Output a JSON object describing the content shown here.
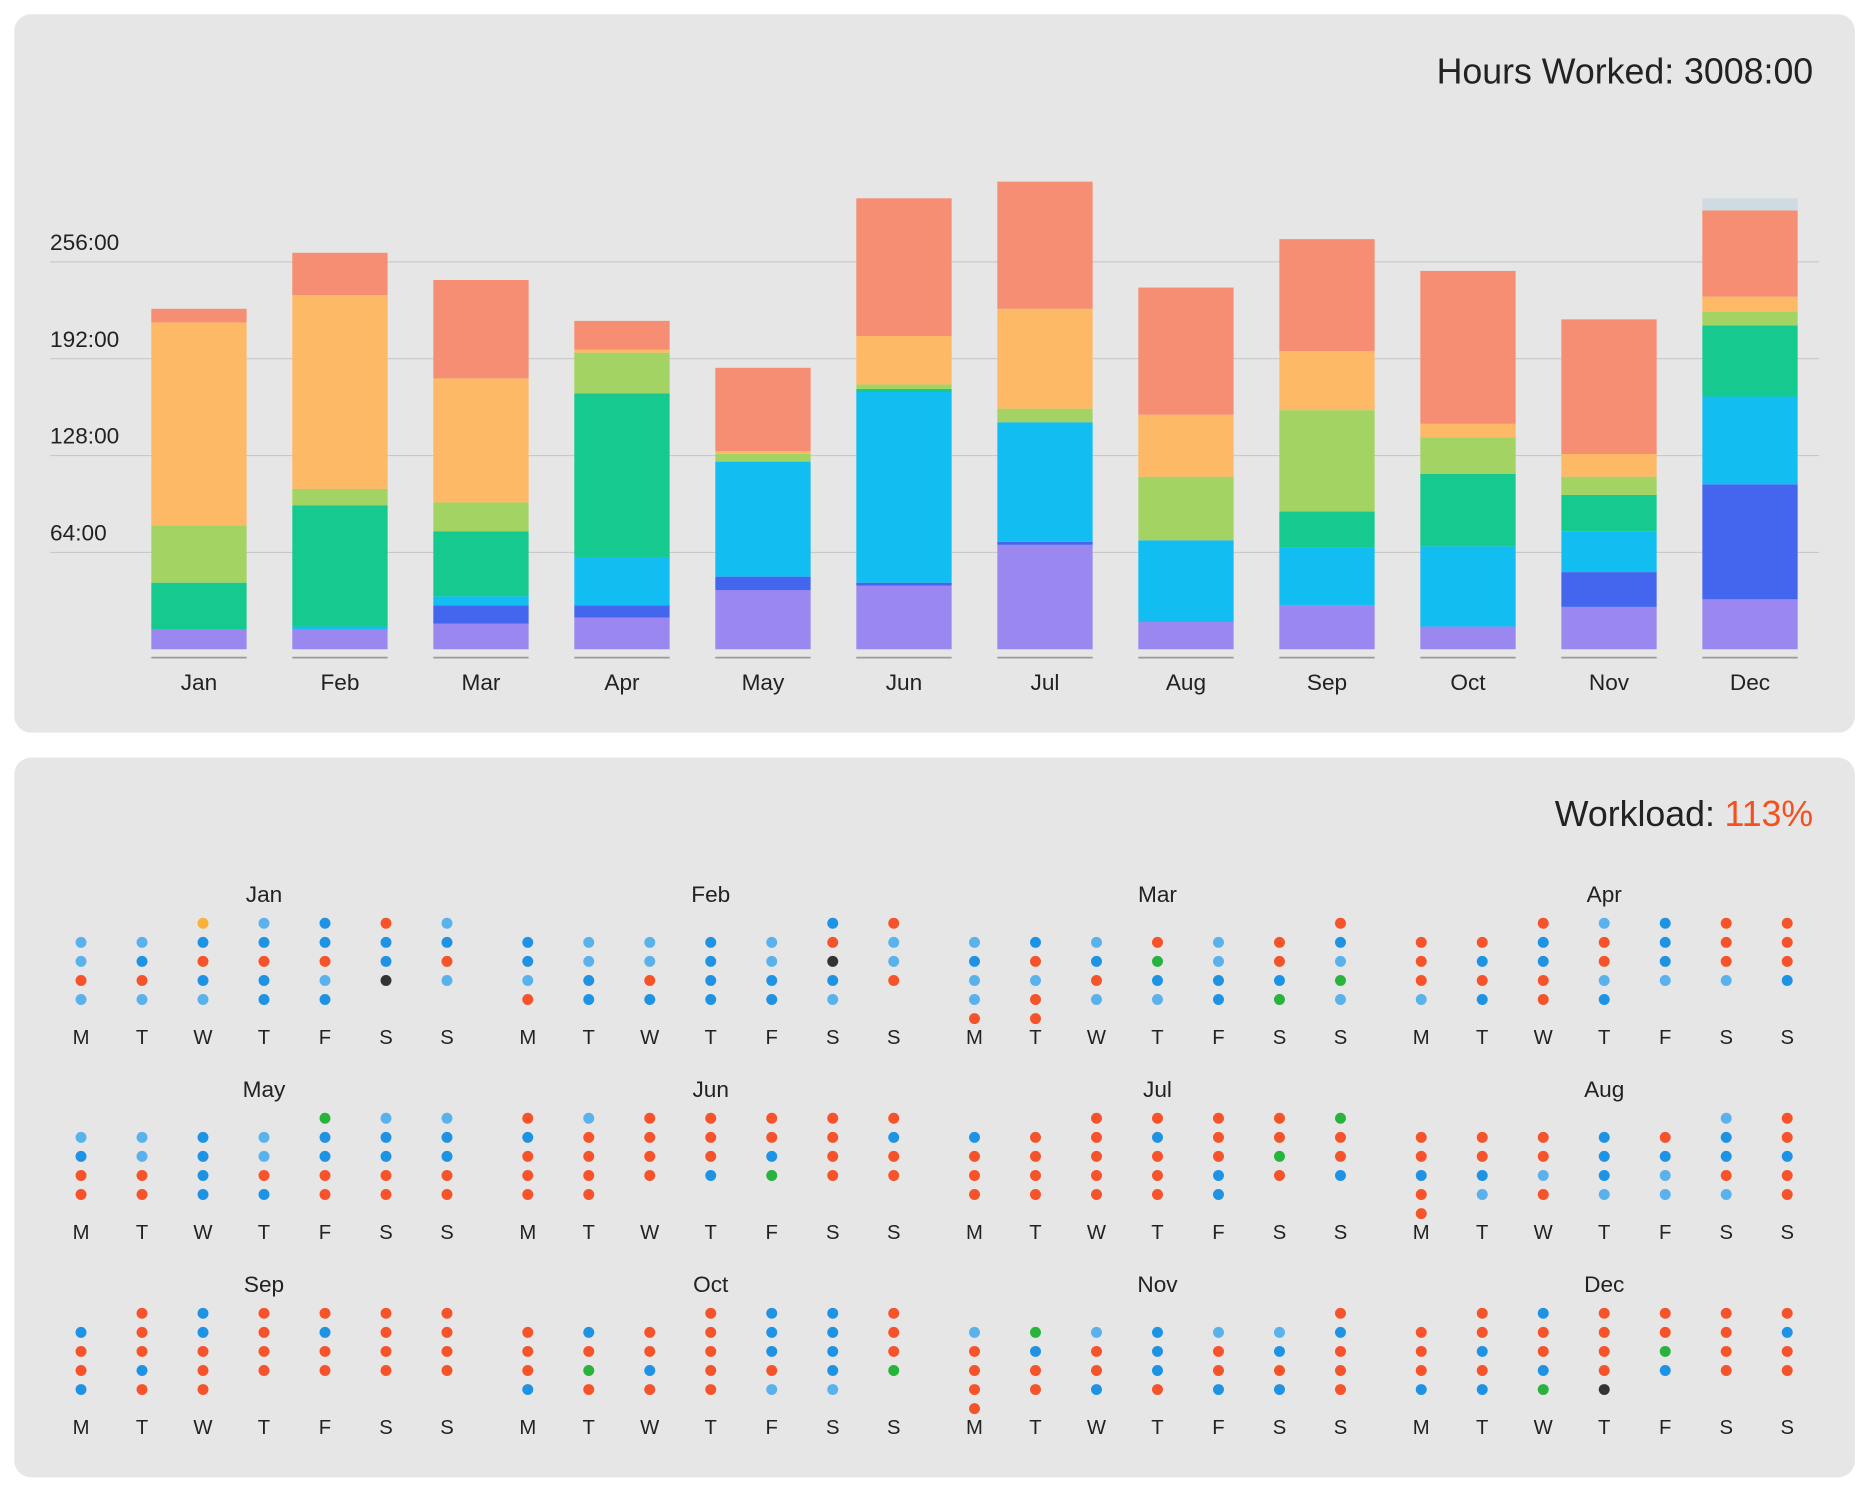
{
  "chart_data": {
    "type": "stacked-bar",
    "title": "Hours Worked: 3008:00",
    "categories": [
      "Jan",
      "Feb",
      "Mar",
      "Apr",
      "May",
      "Jun",
      "Jul",
      "Aug",
      "Sep",
      "Oct",
      "Nov",
      "Dec"
    ],
    "category_colors": [
      "#222222",
      "#222222",
      "#222222",
      "#222222",
      "#222222",
      "#222222",
      "#222222",
      "#222222",
      "#222222",
      "#222222",
      "#222222",
      "#fbb45f"
    ],
    "series": [
      {
        "color": "#9b87f0",
        "values": [
          13,
          13,
          17,
          21,
          39,
          42,
          69,
          18,
          29,
          15,
          28,
          33
        ]
      },
      {
        "color": "#4466ee",
        "values": [
          0,
          0,
          12,
          8,
          9,
          2,
          2,
          0,
          0,
          0,
          23,
          76
        ]
      },
      {
        "color": "#12bdf2",
        "values": [
          0,
          2,
          6,
          32,
          76,
          126,
          79,
          54,
          38,
          53,
          27,
          58
        ]
      },
      {
        "color": "#16c98f",
        "values": [
          31,
          80,
          43,
          108,
          0,
          2,
          0,
          0,
          24,
          48,
          24,
          47
        ]
      },
      {
        "color": "#a3d463",
        "values": [
          38,
          11,
          19,
          27,
          5,
          3,
          9,
          42,
          67,
          24,
          12,
          9
        ]
      },
      {
        "color": "#fdb965",
        "values": [
          134,
          128,
          82,
          2,
          2,
          32,
          66,
          41,
          39,
          9,
          15,
          10
        ]
      },
      {
        "color": "#f58e72",
        "values": [
          9,
          28,
          65,
          19,
          55,
          91,
          84,
          84,
          74,
          101,
          89,
          57
        ]
      },
      {
        "color": "#cfdbe3",
        "values": [
          0,
          0,
          0,
          0,
          0,
          0,
          0,
          0,
          0,
          0,
          0,
          8
        ]
      }
    ],
    "ylim": [
      0,
      320
    ],
    "yticks": [
      {
        "value": 64,
        "label": "64:00"
      },
      {
        "value": 128,
        "label": "128:00"
      },
      {
        "value": 192,
        "label": "192:00"
      },
      {
        "value": 256,
        "label": "256:00"
      }
    ],
    "grid": true
  },
  "workload": {
    "label": "Workload:",
    "value": "113%",
    "value_color": "#f4511e"
  },
  "calendar": {
    "weekdays": [
      "M",
      "T",
      "W",
      "T",
      "F",
      "S",
      "S"
    ],
    "weekday_colors": [
      "#222222",
      "#222222",
      "#222222",
      "#222222",
      "#222222",
      "#888888",
      "#888888"
    ],
    "palette": {
      "r": "#f6532a",
      "b": "#1f93e3",
      "l": "#5ab2ec",
      "g": "#27b33c",
      "k": "#333333",
      "o": "#fbb03b"
    },
    "months": [
      {
        "name": "Jan",
        "weeks": [
          "..olbrl",
          "llbbbbb",
          "lbrrrbr",
          "rrbblkl",
          "lllbb.."
        ]
      },
      {
        "name": "Feb",
        "weeks": [
          ".....br",
          "bllblrl",
          "bllblkl",
          "lbrbbbr",
          "rbbbbl."
        ]
      },
      {
        "name": "Mar",
        "weeks": [
          "......r",
          "lblrlrb",
          "brbglrl",
          "llrbbbg",
          "lrllbgl",
          "rr....."
        ]
      },
      {
        "name": "Apr",
        "weeks": [
          "..rlbrr",
          "rrbrbrr",
          "rbbrbrr",
          "rrrlllb",
          "lbrb..."
        ]
      },
      {
        "name": "May",
        "weeks": [
          "....gll",
          "llblbbb",
          "blblbbb",
          "rrbrrrr",
          "rrbbrrr"
        ]
      },
      {
        "name": "Jun",
        "weeks": [
          "rlrrrrr",
          "brrrrrb",
          "rrrrbrr",
          "rrrbgrr",
          "rr....."
        ]
      },
      {
        "name": "Jul",
        "weeks": [
          "..rrrrg",
          "brrbrrr",
          "rrrrrgr",
          "rrrrbrb",
          "rrrrb.."
        ]
      },
      {
        "name": "Aug",
        "weeks": [
          ".....lr",
          "rrrbrbr",
          "rrrbbbb",
          "bblblrr",
          "rlrlllr",
          "r......"
        ]
      },
      {
        "name": "Sep",
        "weeks": [
          ".rbrrrr",
          "brbrbrr",
          "rrrrrrr",
          "rbrrrrr",
          "brr...."
        ]
      },
      {
        "name": "Oct",
        "weeks": [
          "...rbbr",
          "rbrrbbr",
          "rrrrbbr",
          "rgbrrbg",
          "brrrll."
        ]
      },
      {
        "name": "Nov",
        "weeks": [
          "......r",
          "lglbllb",
          "rbrbrbr",
          "rrrbrrr",
          "rrbrbbr",
          "r......"
        ]
      },
      {
        "name": "Dec",
        "weeks": [
          ".rbrrrr",
          "rrrrrrb",
          "rbrrgrr",
          "rrbrbrr",
          "bbgk..."
        ]
      }
    ]
  }
}
